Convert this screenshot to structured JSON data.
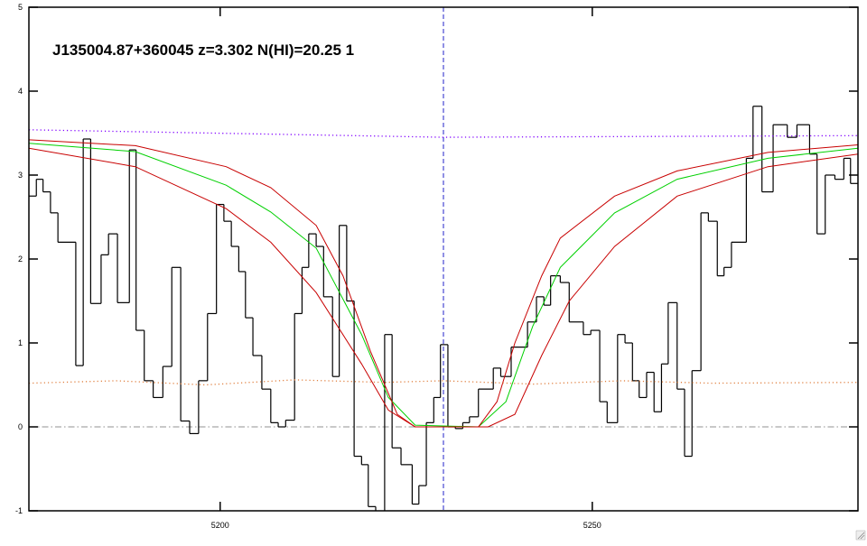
{
  "chart_data": {
    "type": "line",
    "title": "J135004.87+360045 z=3.302 N(HI)=20.25 1",
    "xlim": [
      5174.3,
      5285.7
    ],
    "ylim": [
      -1,
      5
    ],
    "xticks": [
      5200,
      5250
    ],
    "yticks": [
      -1,
      0,
      1,
      2,
      3,
      4,
      5
    ],
    "reference_lines": [
      {
        "axis": "y",
        "value": 0,
        "color": "#909090",
        "style": "dashdot"
      },
      {
        "axis": "x",
        "value": 5230,
        "color": "#2020c8",
        "style": "dashed"
      }
    ],
    "series": [
      {
        "color": "#000000",
        "style": "step",
        "x": [
          5174.3,
          5175.3,
          5176.2,
          5177.2,
          5178.2,
          5180.6,
          5181.6,
          5182.6,
          5184.0,
          5185.0,
          5186.2,
          5187.8,
          5188.7,
          5189.8,
          5191.0,
          5192.3,
          5193.5,
          5194.7,
          5195.9,
          5197.1,
          5198.3,
          5199.5,
          5200.5,
          5201.5,
          5202.5,
          5203.4,
          5204.4,
          5205.6,
          5206.8,
          5207.8,
          5208.8,
          5210.0,
          5211.0,
          5211.9,
          5212.9,
          5213.9,
          5215.1,
          5216.0,
          5217.0,
          5218.0,
          5219.0,
          5219.9,
          5220.9,
          5222.1,
          5223.1,
          5224.3,
          5225.8,
          5226.7,
          5227.7,
          5228.7,
          5229.6,
          5230.6,
          5231.6,
          5232.6,
          5233.5,
          5234.7,
          5236.7,
          5237.7,
          5239.1,
          5241.3,
          5242.5,
          5243.5,
          5244.4,
          5245.7,
          5246.9,
          5248.8,
          5249.8,
          5251.0,
          5252.0,
          5253.4,
          5254.4,
          5255.4,
          5256.3,
          5257.3,
          5258.3,
          5259.3,
          5260.2,
          5261.4,
          5262.4,
          5263.4,
          5264.6,
          5265.6,
          5266.8,
          5267.7,
          5268.7,
          5270.7,
          5271.6,
          5272.8,
          5274.3,
          5276.2,
          5277.5,
          5279.2,
          5280.2,
          5281.3,
          5282.6,
          5283.8,
          5284.7
        ],
        "values": [
          2.75,
          2.95,
          2.8,
          2.55,
          2.2,
          0.73,
          3.43,
          1.47,
          2.05,
          2.3,
          1.48,
          3.3,
          1.15,
          0.55,
          0.35,
          0.72,
          1.9,
          0.07,
          -0.08,
          0.55,
          1.35,
          2.65,
          2.45,
          2.15,
          1.85,
          1.3,
          0.85,
          0.45,
          0.05,
          0.0,
          0.08,
          1.35,
          1.9,
          2.3,
          2.15,
          1.55,
          0.6,
          2.4,
          1.5,
          -0.35,
          -0.45,
          -0.95,
          -1.1,
          1.1,
          -0.25,
          -0.45,
          -0.92,
          -0.7,
          0.05,
          0.35,
          0.98,
          0.0,
          -0.02,
          0.05,
          0.12,
          0.45,
          0.7,
          0.6,
          0.95,
          1.25,
          1.55,
          1.45,
          1.8,
          1.72,
          1.25,
          1.1,
          1.15,
          0.3,
          0.05,
          1.1,
          1.0,
          0.55,
          0.35,
          0.65,
          0.18,
          0.75,
          1.48,
          0.45,
          -0.35,
          0.67,
          2.55,
          2.45,
          1.8,
          1.9,
          2.2,
          3.2,
          3.82,
          2.8,
          3.6,
          3.45,
          3.6,
          3.25,
          2.3,
          3.0,
          2.95,
          3.2,
          2.9
        ]
      },
      {
        "color": "#00d000",
        "style": "solid",
        "x": [
          5174.3,
          5188.6,
          5200.8,
          5206.8,
          5212.9,
          5219.0,
          5222.6,
          5226.2,
          5234.7,
          5238.4,
          5242.0,
          5245.7,
          5253.0,
          5261.4,
          5273.6,
          5285.7
        ],
        "values": [
          3.38,
          3.28,
          2.88,
          2.56,
          2.13,
          1.1,
          0.35,
          0.02,
          0.0,
          0.3,
          1.2,
          1.9,
          2.55,
          2.95,
          3.2,
          3.32
        ]
      },
      {
        "color": "#c80000",
        "style": "solid",
        "x": [
          5174.3,
          5188.6,
          5200.8,
          5206.8,
          5212.9,
          5216.5,
          5220.2,
          5223.8,
          5226.2,
          5234.7,
          5237.2,
          5239.6,
          5243.2,
          5245.7,
          5253.0,
          5261.4,
          5273.6,
          5285.7
        ],
        "values": [
          3.42,
          3.35,
          3.1,
          2.85,
          2.4,
          1.8,
          0.9,
          0.15,
          0.0,
          0.0,
          0.3,
          1.0,
          1.8,
          2.25,
          2.75,
          3.05,
          3.27,
          3.36
        ]
      },
      {
        "color": "#c80000",
        "style": "solid",
        "x": [
          5174.3,
          5188.6,
          5200.8,
          5206.8,
          5212.9,
          5219.0,
          5222.6,
          5226.2,
          5236.0,
          5239.6,
          5243.2,
          5246.9,
          5253.0,
          5261.4,
          5273.6,
          5285.7
        ],
        "values": [
          3.32,
          3.1,
          2.6,
          2.2,
          1.6,
          0.75,
          0.2,
          0.0,
          0.0,
          0.15,
          0.85,
          1.5,
          2.15,
          2.75,
          3.1,
          3.25
        ]
      },
      {
        "color": "#8000ff",
        "style": "dotted",
        "x": [
          5174.3,
          5230.0,
          5285.7
        ],
        "values": [
          3.54,
          3.45,
          3.47
        ]
      },
      {
        "color": "#e08040",
        "style": "dotted",
        "x": [
          5174.3,
          5186.0,
          5198.0,
          5210.0,
          5222.0,
          5230.0,
          5242.0,
          5254.0,
          5266.0,
          5285.7
        ],
        "values": [
          0.52,
          0.55,
          0.5,
          0.56,
          0.53,
          0.55,
          0.51,
          0.55,
          0.52,
          0.53
        ]
      }
    ]
  }
}
